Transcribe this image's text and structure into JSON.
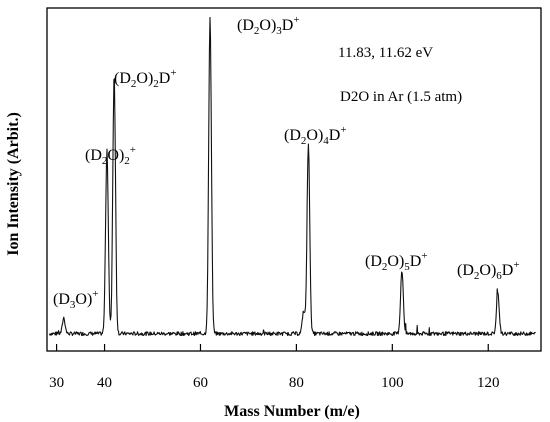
{
  "chart_data": {
    "type": "line",
    "title": "",
    "xlabel": "Mass Number (m/e)",
    "ylabel": "Ion Intensity (Arbit.)",
    "xlim": [
      28,
      131
    ],
    "ylim": [
      0,
      1.06
    ],
    "x_ticks": [
      30,
      40,
      60,
      80,
      100,
      120
    ],
    "grid": false,
    "legend": "none",
    "annotations": [
      "11.83, 11.62 eV",
      "D2O in Ar (1.5 atm)"
    ],
    "series": [
      {
        "name": "",
        "peaks": [
          {
            "x": 31.5,
            "y": 0.05,
            "label": "(D3O)+"
          },
          {
            "x": 40.5,
            "y": 0.58,
            "label": "(D2O)2+"
          },
          {
            "x": 42.0,
            "y": 0.82,
            "label": "(D2O)2D+"
          },
          {
            "x": 62.0,
            "y": 1.0,
            "label": "(D2O)3D+"
          },
          {
            "x": 81.5,
            "y": 0.07,
            "label": ""
          },
          {
            "x": 82.5,
            "y": 0.6,
            "label": "(D2O)4D+"
          },
          {
            "x": 102.0,
            "y": 0.2,
            "label": "(D2O)5D+"
          },
          {
            "x": 122.0,
            "y": 0.13,
            "label": "(D2O)6D+"
          }
        ],
        "baseline": 0.02
      }
    ]
  }
}
